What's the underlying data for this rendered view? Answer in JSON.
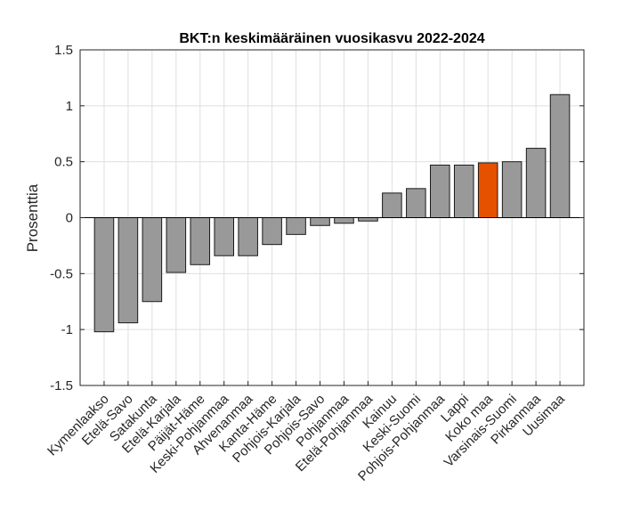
{
  "chart_data": {
    "type": "bar",
    "title": "BKT:n keskimääräinen vuosikasvu 2022-2024",
    "xlabel": "",
    "ylabel": "Prosenttia",
    "ylim": [
      -1.5,
      1.5
    ],
    "yticks": [
      -1.5,
      -1,
      -0.5,
      0,
      0.5,
      1,
      1.5
    ],
    "ytick_labels": [
      "-1.5",
      "-1",
      "-0.5",
      "0",
      "0.5",
      "1",
      "1.5"
    ],
    "grid": true,
    "categories": [
      "Kymenlaakso",
      "Etelä-Savo",
      "Satakunta",
      "Etelä-Karjala",
      "Päijät-Häme",
      "Keski-Pohjanmaa",
      "Ahvenanmaa",
      "Kanta-Häme",
      "Pohjois-Karjala",
      "Pohjois-Savo",
      "Pohjanmaa",
      "Etelä-Pohjanmaa",
      "Kainuu",
      "Keski-Suomi",
      "Pohjois-Pohjanmaa",
      "Lappi",
      "Koko maa",
      "Varsinais-Suomi",
      "Pirkanmaa",
      "Uusimaa"
    ],
    "values": [
      -1.02,
      -0.94,
      -0.75,
      -0.49,
      -0.42,
      -0.34,
      -0.34,
      -0.24,
      -0.15,
      -0.07,
      -0.05,
      -0.03,
      0.22,
      0.26,
      0.47,
      0.47,
      0.49,
      0.5,
      0.62,
      1.1
    ],
    "highlight": "Koko maa",
    "colors": {
      "bar": "#999999",
      "highlight": "#e65100",
      "edge": "#1a1a1a",
      "grid": "#dfdfdf",
      "axis": "#262626"
    }
  }
}
